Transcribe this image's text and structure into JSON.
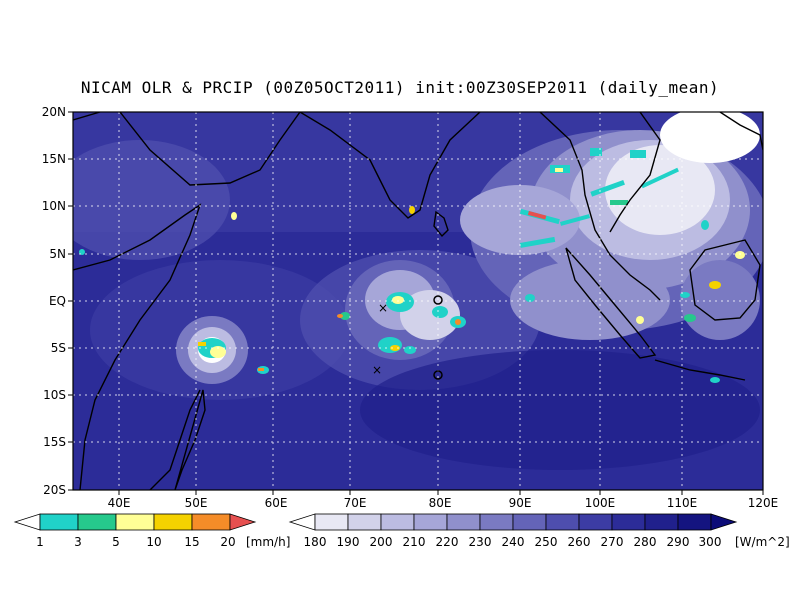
{
  "title": "NICAM OLR & PRCIP (00Z05OCT2011) init:00Z30SEP2011 (daily_mean)",
  "lat_labels": [
    "20N",
    "15N",
    "10N",
    "5N",
    "EQ",
    "5S",
    "10S",
    "15S",
    "20S"
  ],
  "lon_labels": [
    "40E",
    "50E",
    "60E",
    "70E",
    "80E",
    "90E",
    "100E",
    "110E",
    "120E"
  ],
  "precip_scale": {
    "labels": [
      "1",
      "3",
      "5",
      "10",
      "15",
      "20"
    ],
    "unit": "[mm/h]",
    "colors": [
      "#ffffff",
      "#20d2c8",
      "#26c98c",
      "#ffff96",
      "#f5d200",
      "#f58c28",
      "#e65050"
    ]
  },
  "olr_scale": {
    "labels": [
      "180",
      "190",
      "200",
      "210",
      "220",
      "230",
      "240",
      "250",
      "260",
      "270",
      "280",
      "290",
      "300"
    ],
    "unit": "[W/m^2]",
    "colors": [
      "#ffffff",
      "#e8e8f4",
      "#d2d2ea",
      "#bcbce2",
      "#a6a6d8",
      "#9090cc",
      "#7a7ac2",
      "#6464b8",
      "#4e4eae",
      "#3c3ca4",
      "#2c2c98",
      "#20208c",
      "#141480",
      "#0c0c78"
    ]
  },
  "markers": [
    {
      "type": "x",
      "lon": 73.3,
      "lat": -0.5
    },
    {
      "type": "x",
      "lon": 72.5,
      "lat": -7.3
    },
    {
      "type": "o",
      "lon": 80.0,
      "lat": 0.8
    },
    {
      "type": "o",
      "lon": 80.0,
      "lat": -7.8
    }
  ]
}
